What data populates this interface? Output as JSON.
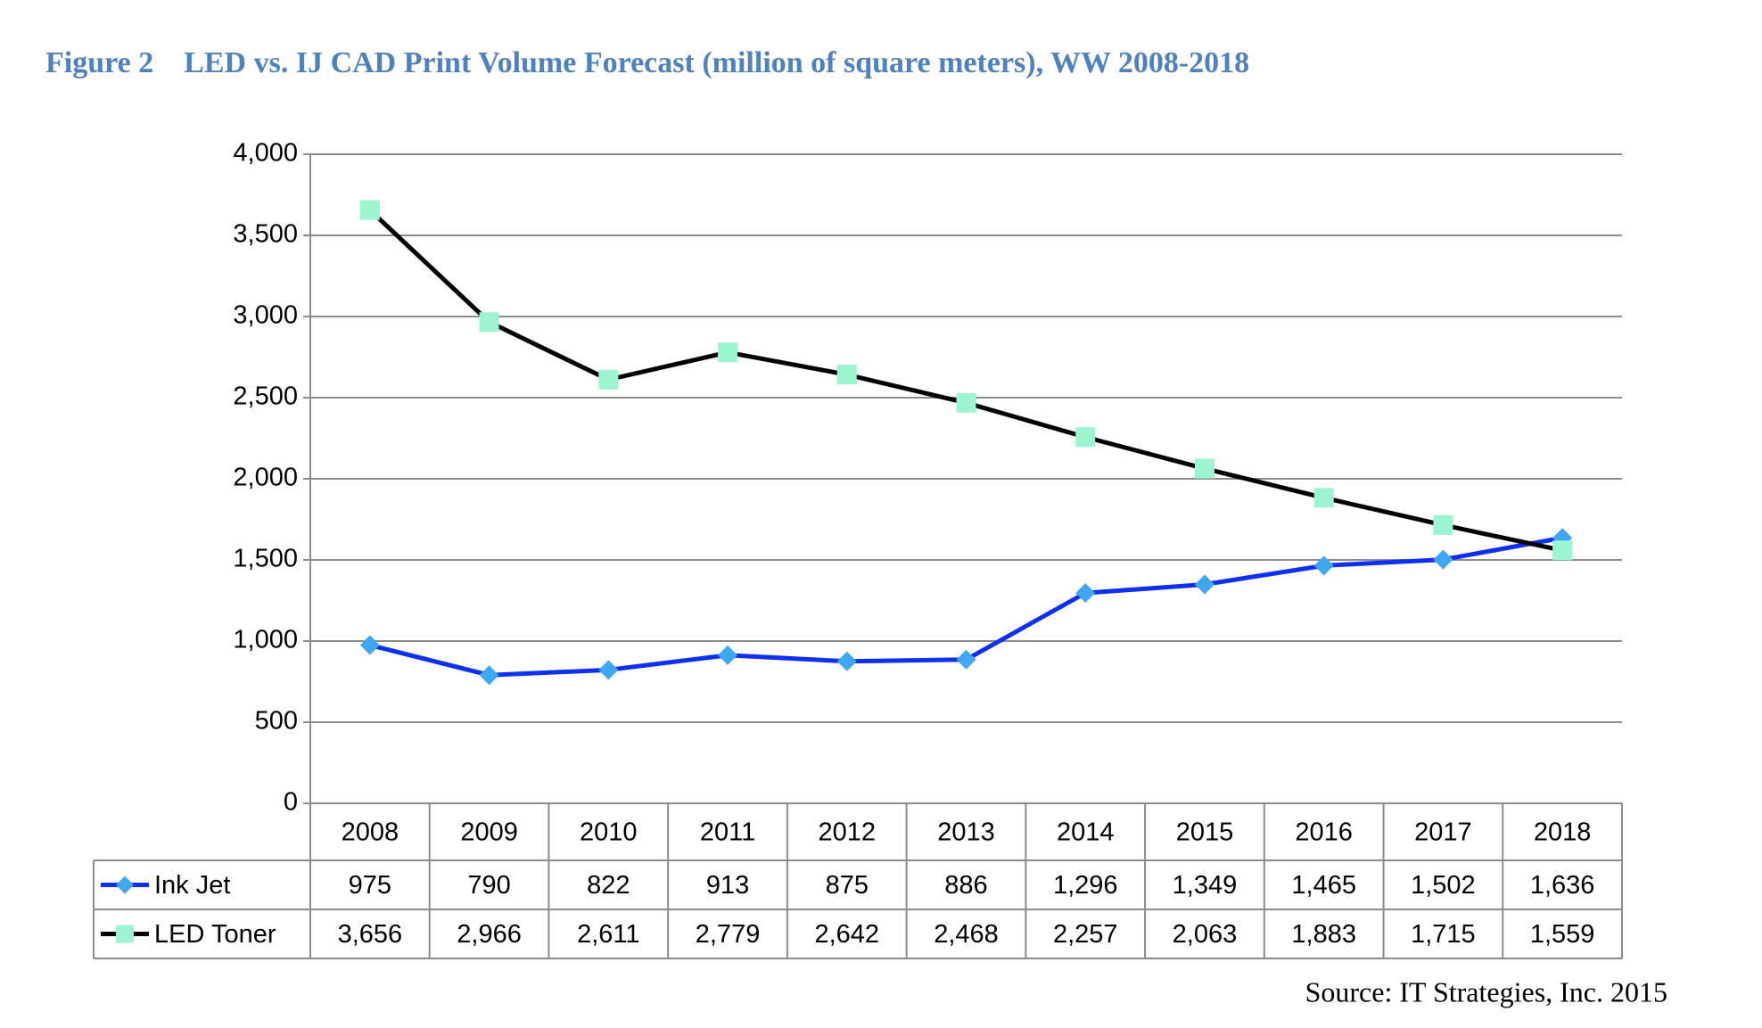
{
  "chart_data": {
    "type": "line",
    "title": "Figure 2    LED vs. IJ CAD Print Volume Forecast (million of square meters), WW 2008-2018",
    "source": "Source: IT Strategies, Inc. 2015",
    "categories": [
      "2008",
      "2009",
      "2010",
      "2011",
      "2012",
      "2013",
      "2014",
      "2015",
      "2016",
      "2017",
      "2018"
    ],
    "series": [
      {
        "name": "Ink Jet",
        "color": "#1030f0",
        "marker_color": "#3fa6f2",
        "marker": "diamond",
        "values": [
          975,
          790,
          822,
          913,
          875,
          886,
          1296,
          1349,
          1465,
          1502,
          1636
        ],
        "value_labels": [
          "975",
          "790",
          "822",
          "913",
          "875",
          "886",
          "1,296",
          "1,349",
          "1,465",
          "1,502",
          "1,636"
        ]
      },
      {
        "name": "LED Toner",
        "color": "#000000",
        "marker_color": "#9cf5cf",
        "marker": "square",
        "values": [
          3656,
          2966,
          2611,
          2779,
          2642,
          2468,
          2257,
          2063,
          1883,
          1715,
          1559
        ],
        "value_labels": [
          "3,656",
          "2,966",
          "2,611",
          "2,779",
          "2,642",
          "2,468",
          "2,257",
          "2,063",
          "1,883",
          "1,715",
          "1,559"
        ]
      }
    ],
    "ylim": [
      0,
      4000
    ],
    "yticks": [
      0,
      500,
      {
        "value": 1000,
        "label": "1,000"
      },
      {
        "value": 1500,
        "label": "1,500"
      },
      {
        "value": 2000,
        "label": "2,000"
      },
      {
        "value": 2500,
        "label": "2,500"
      },
      {
        "value": 3000,
        "label": "3,000"
      },
      {
        "value": 3500,
        "label": "3,500"
      },
      {
        "value": 4000,
        "label": "4,000"
      }
    ],
    "grid": true
  }
}
